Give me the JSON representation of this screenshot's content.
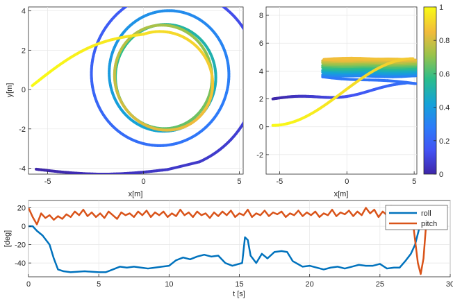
{
  "chart_data": [
    {
      "type": "line",
      "id": "xy-trajectory",
      "title": "",
      "xlabel": "x[m]",
      "ylabel": "y[m]",
      "xlim": [
        -6,
        5.2
      ],
      "ylim": [
        -4.3,
        4.2
      ],
      "xticks": [
        -5,
        0,
        5
      ],
      "yticks": [
        -4,
        -2,
        0,
        2,
        4
      ],
      "grid": true,
      "color_by": "normalized time (colorbar)",
      "trajectory": {
        "start": [
          -5.6,
          -4.05
        ],
        "spiral_center_initial": [
          1.2,
          0.9
        ],
        "radius_initial": 5.0,
        "center_final": [
          1.0,
          0.5
        ],
        "radius_final": 2.5,
        "exit_to": [
          -5.8,
          0.2
        ]
      }
    },
    {
      "type": "line",
      "id": "xz-trajectory",
      "title": "",
      "xlabel": "x[m]",
      "ylabel": "",
      "xlim": [
        -6,
        5.2
      ],
      "ylim": [
        -3.4,
        8.6
      ],
      "xticks": [
        -5,
        0,
        5
      ],
      "yticks": [
        -2,
        0,
        2,
        4,
        6,
        8
      ],
      "grid": true,
      "color_by": "normalized time (colorbar)",
      "trajectory": {
        "start": [
          -5.5,
          2.0
        ],
        "rise_to": 3.6,
        "band_z": [
          3.6,
          4.9
        ],
        "exit_to": [
          -5.5,
          0.1
        ]
      }
    },
    {
      "type": "colorbar",
      "id": "colorbar",
      "ylim": [
        0,
        1
      ],
      "ticks": [
        0,
        0.2,
        0.4,
        0.6,
        0.8,
        1
      ],
      "tick_labels": [
        "0",
        "0.2",
        "0.4",
        "0.6",
        "0.8",
        "1"
      ],
      "colormap": "parula"
    },
    {
      "type": "line",
      "id": "roll-pitch",
      "title": "",
      "xlabel": "t [s]",
      "ylabel": "[deg]",
      "xlim": [
        0,
        30
      ],
      "ylim": [
        -55,
        28
      ],
      "xticks": [
        0,
        5,
        10,
        15,
        20,
        25,
        30
      ],
      "yticks": [
        -40,
        -20,
        0,
        20
      ],
      "grid": true,
      "legend": "top-right",
      "series": [
        {
          "name": "roll",
          "color": "#0072bd",
          "points": [
            [
              0,
              0
            ],
            [
              0.3,
              0
            ],
            [
              0.6,
              -5
            ],
            [
              1.0,
              -10
            ],
            [
              1.5,
              -20
            ],
            [
              1.8,
              -35
            ],
            [
              2.1,
              -47
            ],
            [
              2.5,
              -49
            ],
            [
              3,
              -50
            ],
            [
              4,
              -49
            ],
            [
              5,
              -50
            ],
            [
              5.5,
              -50
            ],
            [
              6,
              -47
            ],
            [
              6.5,
              -44
            ],
            [
              7,
              -45
            ],
            [
              7.5,
              -44
            ],
            [
              8,
              -45
            ],
            [
              8.5,
              -46
            ],
            [
              9,
              -45
            ],
            [
              9.5,
              -44
            ],
            [
              10,
              -43
            ],
            [
              10.5,
              -37
            ],
            [
              11,
              -34
            ],
            [
              11.5,
              -36
            ],
            [
              12,
              -33
            ],
            [
              12.5,
              -31
            ],
            [
              13,
              -33
            ],
            [
              13.5,
              -32
            ],
            [
              14,
              -40
            ],
            [
              14.5,
              -43
            ],
            [
              15.2,
              -40
            ],
            [
              15.4,
              -12
            ],
            [
              15.6,
              -15
            ],
            [
              15.8,
              -32
            ],
            [
              16.2,
              -40
            ],
            [
              16.6,
              -30
            ],
            [
              17,
              -35
            ],
            [
              17.5,
              -28
            ],
            [
              18,
              -27
            ],
            [
              18.4,
              -28
            ],
            [
              18.8,
              -38
            ],
            [
              19.5,
              -44
            ],
            [
              20,
              -43
            ],
            [
              21,
              -47
            ],
            [
              21.5,
              -45
            ],
            [
              22,
              -44
            ],
            [
              22.5,
              -46
            ],
            [
              23,
              -44
            ],
            [
              23.5,
              -42
            ],
            [
              24,
              -43
            ],
            [
              24.5,
              -43
            ],
            [
              25,
              -41
            ],
            [
              25.5,
              -46
            ],
            [
              26,
              -45
            ],
            [
              26.4,
              -45
            ],
            [
              26.8,
              -38
            ],
            [
              27.2,
              -30
            ],
            [
              27.5,
              -20
            ],
            [
              27.8,
              -2
            ],
            [
              28.2,
              8
            ],
            [
              28.4,
              6
            ]
          ]
        },
        {
          "name": "pitch",
          "color": "#d95319",
          "points": [
            [
              0,
              20
            ],
            [
              0.3,
              10
            ],
            [
              0.6,
              2
            ],
            [
              0.9,
              14
            ],
            [
              1.2,
              9
            ],
            [
              1.5,
              12
            ],
            [
              1.8,
              7
            ],
            [
              2.1,
              11
            ],
            [
              2.4,
              8
            ],
            [
              2.7,
              13
            ],
            [
              3,
              10
            ],
            [
              3.3,
              16
            ],
            [
              3.6,
              12
            ],
            [
              3.9,
              18
            ],
            [
              4.2,
              11
            ],
            [
              4.5,
              15
            ],
            [
              4.8,
              10
            ],
            [
              5.1,
              14
            ],
            [
              5.4,
              9
            ],
            [
              5.7,
              16
            ],
            [
              6,
              12
            ],
            [
              6.3,
              8
            ],
            [
              6.6,
              15
            ],
            [
              6.9,
              12
            ],
            [
              7.2,
              14
            ],
            [
              7.5,
              10
            ],
            [
              7.8,
              16
            ],
            [
              8.1,
              12
            ],
            [
              8.4,
              17
            ],
            [
              8.7,
              10
            ],
            [
              9,
              15
            ],
            [
              9.3,
              12
            ],
            [
              9.6,
              16
            ],
            [
              9.9,
              10
            ],
            [
              10.2,
              14
            ],
            [
              10.5,
              11
            ],
            [
              10.8,
              18
            ],
            [
              11.1,
              12
            ],
            [
              11.4,
              15
            ],
            [
              11.7,
              10
            ],
            [
              12,
              16
            ],
            [
              12.3,
              12
            ],
            [
              12.6,
              14
            ],
            [
              12.9,
              9
            ],
            [
              13.2,
              15
            ],
            [
              13.5,
              11
            ],
            [
              13.8,
              16
            ],
            [
              14.1,
              12
            ],
            [
              14.4,
              17
            ],
            [
              14.7,
              10
            ],
            [
              15,
              14
            ],
            [
              15.3,
              12
            ],
            [
              15.6,
              18
            ],
            [
              15.9,
              10
            ],
            [
              16.2,
              14
            ],
            [
              16.5,
              12
            ],
            [
              16.8,
              17
            ],
            [
              17.1,
              11
            ],
            [
              17.4,
              15
            ],
            [
              17.7,
              13
            ],
            [
              18,
              16
            ],
            [
              18.3,
              10
            ],
            [
              18.6,
              14
            ],
            [
              18.9,
              12
            ],
            [
              19.2,
              17
            ],
            [
              19.5,
              11
            ],
            [
              19.8,
              15
            ],
            [
              20.1,
              12
            ],
            [
              20.4,
              16
            ],
            [
              20.7,
              10
            ],
            [
              21,
              14
            ],
            [
              21.3,
              12
            ],
            [
              21.6,
              18
            ],
            [
              21.9,
              11
            ],
            [
              22.2,
              15
            ],
            [
              22.5,
              13
            ],
            [
              22.8,
              17
            ],
            [
              23.1,
              11
            ],
            [
              23.4,
              16
            ],
            [
              23.7,
              12
            ],
            [
              24,
              20
            ],
            [
              24.3,
              14
            ],
            [
              24.6,
              18
            ],
            [
              24.9,
              10
            ],
            [
              25.2,
              16
            ],
            [
              25.5,
              12
            ],
            [
              25.8,
              22
            ],
            [
              26.1,
              14
            ],
            [
              26.4,
              20
            ],
            [
              26.7,
              12
            ],
            [
              27,
              18
            ],
            [
              27.3,
              10
            ],
            [
              27.5,
              -15
            ],
            [
              27.7,
              -40
            ],
            [
              27.9,
              -52
            ],
            [
              28.1,
              -35
            ],
            [
              28.3,
              5
            ],
            [
              28.5,
              22
            ]
          ]
        }
      ]
    }
  ]
}
